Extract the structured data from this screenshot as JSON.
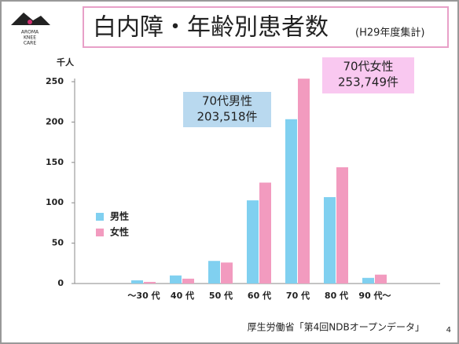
{
  "logo": {
    "lines": [
      "AROMA",
      "KNEE",
      "CARE"
    ]
  },
  "source": "厚生労働省「第4回NDBオープンデータ」",
  "page_number": "4",
  "chart_data": {
    "type": "bar",
    "title": "白内障・年齢別患者数",
    "subtitle": "(H29年度集計)",
    "y_unit": "千人",
    "categories": [
      "～30 代",
      "40 代",
      "50 代",
      "60 代",
      "70 代",
      "80 代",
      "90 代～"
    ],
    "series": [
      {
        "name": "男性",
        "color": "#80d0f0",
        "values": [
          4,
          10,
          28,
          103,
          203.518,
          107,
          7
        ]
      },
      {
        "name": "女性",
        "color": "#f29bbf",
        "values": [
          2,
          6,
          26,
          125,
          253.749,
          144,
          11
        ]
      }
    ],
    "ylim": [
      0,
      250
    ],
    "yticks": [
      0,
      50,
      100,
      150,
      200,
      250
    ],
    "grid": false,
    "legend": "left",
    "annotations": [
      {
        "lines": [
          "70代男性",
          "203,518件"
        ],
        "color": "#b9d9ef"
      },
      {
        "lines": [
          "70代女性",
          "253,749件"
        ],
        "color": "#f9c8f0"
      }
    ]
  }
}
